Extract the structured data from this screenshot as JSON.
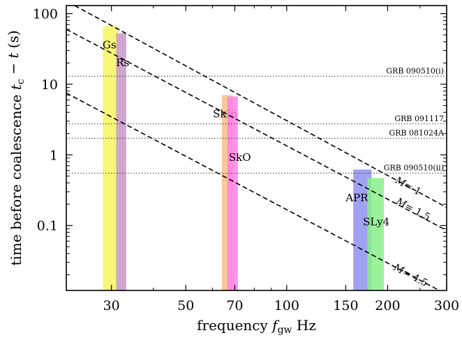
{
  "chart_data": {
    "type": "area",
    "xscale": "log",
    "yscale": "log",
    "xlim": [
      22,
      300
    ],
    "ylim": [
      0.012,
      130
    ],
    "xlabel_prefix": "frequency ",
    "xlabel_var": "f",
    "xlabel_sub": "gw",
    "xlabel_suffix": " Hz",
    "ylabel_prefix": "time before coalescence ",
    "ylabel_var": "t",
    "ylabel_sub": "c",
    "ylabel_suffix": " − t",
    "ylabel_unit": " (s)",
    "xticks": [
      30,
      50,
      70,
      100,
      150,
      200,
      300
    ],
    "xtick_labels": [
      "30",
      "50",
      "70",
      "100",
      "150",
      "200",
      "300"
    ],
    "yticks": [
      0.1,
      1,
      10,
      100
    ],
    "ytick_labels": [
      "0.1",
      "1",
      "10",
      "100"
    ],
    "bands": [
      {
        "name": "Gs",
        "color": "#f5f560",
        "f_min": 28.3,
        "f_max": 31.4,
        "t_top": 66,
        "label_f": 29.6,
        "label_t": 32
      },
      {
        "name": "Rs",
        "color": "#c896c8",
        "f_min": 31.0,
        "f_max": 33.2,
        "t_top": 53,
        "label_f": 32.4,
        "label_t": 18
      },
      {
        "name": "SkI6",
        "color": "#f5c088",
        "f_min": 64.0,
        "f_max": 69.0,
        "t_top": 7.0,
        "label_f": 65.5,
        "label_t": 3.4
      },
      {
        "name": "SkO",
        "color": "#ff80e6",
        "f_min": 66.5,
        "f_max": 71.5,
        "t_top": 6.7,
        "label_f": 72.5,
        "label_t": 0.82
      },
      {
        "name": "APR",
        "color": "#9090f0",
        "f_min": 158,
        "f_max": 179,
        "t_top": 0.62,
        "label_f": 162,
        "label_t": 0.22
      },
      {
        "name": "SLy4",
        "color": "#88f088",
        "f_min": 174,
        "f_max": 195,
        "t_top": 0.47,
        "label_f": 185,
        "label_t": 0.1
      }
    ],
    "grb_lines": [
      {
        "name": "GRB 090510(i)",
        "t": 13
      },
      {
        "name": "GRB 091117",
        "t": 2.75
      },
      {
        "name": "GRB 081024A",
        "t": 1.72
      },
      {
        "name": "GRB 090510(ii)",
        "t": 0.55
      }
    ],
    "mass_lines": [
      {
        "label_var": "M",
        "label_value": "= 1",
        "points": [
          [
            23.3,
            130
          ],
          [
            300,
            0.18
          ]
        ],
        "label_f": 228,
        "label_t": 0.33
      },
      {
        "label_var": "M",
        "label_value": "= 1.5",
        "points": [
          [
            22,
            60
          ],
          [
            300,
            0.085
          ]
        ],
        "label_f": 236,
        "label_t": 0.155
      },
      {
        "label_var": "M",
        "label_value": "= 4.5",
        "points": [
          [
            22,
            7.5
          ],
          [
            300,
            0.0106
          ]
        ],
        "label_f": 232,
        "label_t": 0.018
      }
    ]
  }
}
